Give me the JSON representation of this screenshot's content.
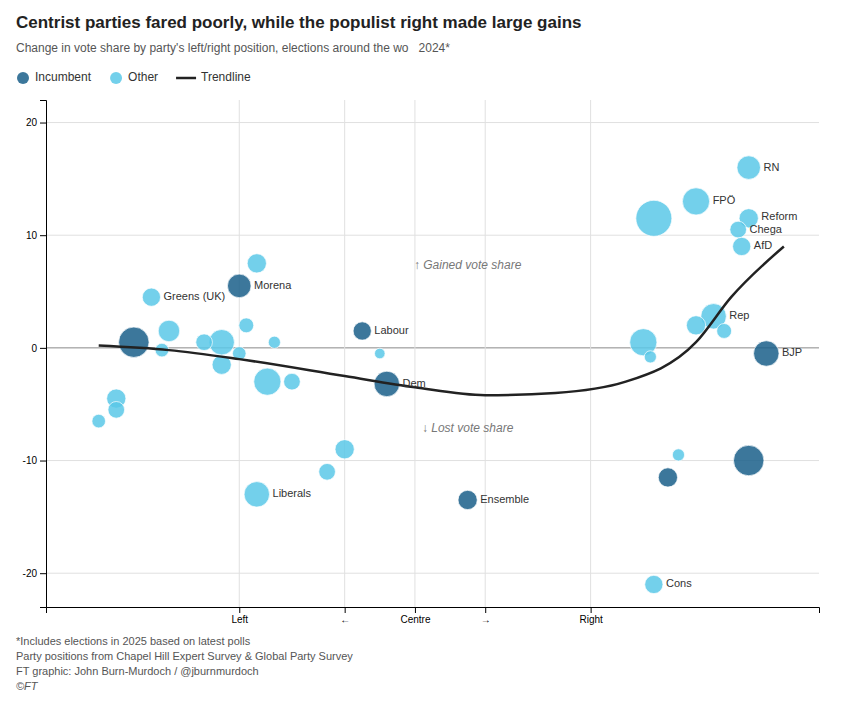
{
  "chart_data": {
    "type": "scatter",
    "title": "Centrist parties fared poorly, while the populist right made large gains",
    "subtitle": [
      "Change in vote share by party's left/right position, elections around the wo",
      "2024*"
    ],
    "footnotes": [
      "*Includes elections in 2025 based on latest polls",
      "Party positions from Chapel Hill Expert Survey & Global Party Survey",
      "FT graphic: John Burn-Murdoch / @jburnmurdoch",
      "©FT"
    ],
    "xlim": [
      -10.5,
      11.5
    ],
    "ylim": [
      -23,
      22
    ],
    "xticks": [
      {
        "value": -5,
        "label": "Left"
      },
      {
        "value": -2,
        "label": "←"
      },
      {
        "value": 0,
        "label": "Centre"
      },
      {
        "value": 2,
        "label": "→"
      },
      {
        "value": 5,
        "label": "Right"
      }
    ],
    "yticks": [
      -20,
      -10,
      0,
      10,
      20
    ],
    "grid": true,
    "legend": "top",
    "annotations": [
      {
        "text": "↑ Gained vote share",
        "x": 1.5,
        "y": 7
      },
      {
        "text": "↓ Lost vote share",
        "x": 1.5,
        "y": -7.5
      }
    ],
    "series": [
      {
        "name": "Incumbent",
        "color": "#1a5f8a",
        "marker": "circle",
        "x": [
          10.0,
          7.2,
          9.5,
          1.5,
          -1.5,
          -0.8,
          -5.0,
          -8.0
        ],
        "values": [
          -0.5,
          -11.5,
          -10,
          -13.5,
          1.5,
          -3.2,
          5.5,
          0.5
        ],
        "sizes": [
          350,
          200,
          500,
          200,
          180,
          350,
          300,
          500
        ],
        "labels": [
          "BJP",
          null,
          null,
          "Ensemble",
          "Labour",
          "Dem",
          "Morena",
          null
        ]
      },
      {
        "name": "Other",
        "color": "#5bc8e8",
        "marker": "circle",
        "x": [
          9.5,
          8.0,
          9.5,
          9.2,
          9.3,
          6.8,
          8.5,
          8.0,
          8.8,
          6.5,
          6.7,
          6.8,
          7.5,
          -1.0,
          -2.0,
          -2.5,
          -4.5,
          -4.5,
          -4.8,
          -4.0,
          -4.2,
          -5.5,
          -3.5,
          -5.5,
          -5.0,
          -6.0,
          -7.5,
          -7.0,
          -7.2,
          -8.5,
          -8.5,
          -9.0
        ],
        "values": [
          16,
          13,
          11.5,
          10.5,
          9.0,
          11.5,
          2.8,
          2.0,
          1.5,
          0.5,
          -0.8,
          -21,
          -9.5,
          -0.5,
          -9.0,
          -11.0,
          -13.0,
          7.5,
          2.0,
          0.5,
          -3.0,
          -1.5,
          -3.0,
          0.5,
          -0.5,
          0.5,
          4.5,
          1.5,
          -0.2,
          -4.5,
          -5.5,
          -6.5
        ],
        "sizes": [
          300,
          400,
          200,
          150,
          180,
          700,
          350,
          200,
          120,
          400,
          80,
          180,
          80,
          60,
          200,
          150,
          350,
          200,
          120,
          80,
          400,
          200,
          150,
          350,
          100,
          150,
          180,
          250,
          100,
          200,
          150,
          100
        ],
        "labels": [
          "RN",
          "FPÖ",
          "Reform",
          "Chega",
          "AfD",
          null,
          "Rep",
          null,
          null,
          null,
          null,
          "Cons",
          null,
          null,
          null,
          null,
          "Liberals",
          null,
          null,
          null,
          null,
          null,
          null,
          null,
          null,
          null,
          "Greens (UK)",
          null,
          null,
          null,
          null,
          null
        ]
      },
      {
        "name": "Trendline",
        "type": "line",
        "color": "#222222",
        "line_style": "solid",
        "x": [
          -9,
          -7,
          -5,
          -2,
          0,
          2,
          4,
          6,
          8,
          9,
          10.5
        ],
        "values": [
          0.2,
          -0.2,
          -1.0,
          -2.5,
          -3.5,
          -4.2,
          -4.0,
          -3.0,
          0.5,
          4.5,
          9.0
        ]
      }
    ]
  }
}
